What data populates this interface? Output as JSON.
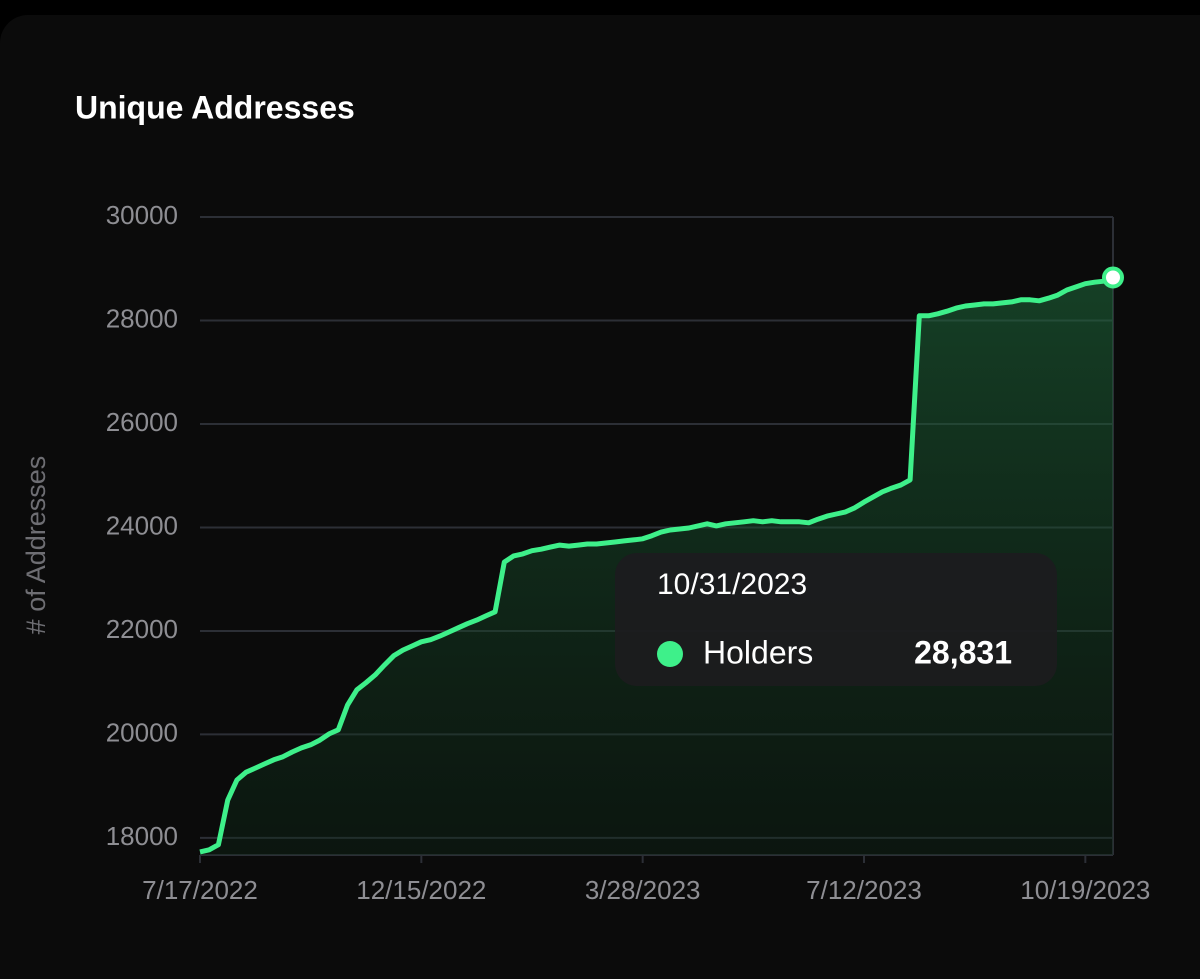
{
  "chart_data": {
    "type": "area",
    "title": "Unique Addresses",
    "y_label": "# of Addresses",
    "categories": [
      "7/17/2022",
      null,
      null,
      null,
      null,
      null,
      null,
      null,
      null,
      null,
      null,
      null,
      null,
      null,
      null,
      null,
      null,
      null,
      null,
      null,
      null,
      null,
      null,
      null,
      "12/15/2022",
      null,
      null,
      null,
      null,
      null,
      null,
      null,
      null,
      null,
      null,
      null,
      null,
      null,
      null,
      null,
      null,
      null,
      null,
      null,
      null,
      null,
      null,
      null,
      "3/28/2023",
      null,
      null,
      null,
      null,
      null,
      null,
      null,
      null,
      null,
      null,
      null,
      null,
      null,
      null,
      null,
      null,
      null,
      null,
      null,
      null,
      null,
      null,
      null,
      "7/12/2023",
      null,
      null,
      null,
      null,
      null,
      null,
      null,
      null,
      null,
      null,
      null,
      null,
      null,
      null,
      null,
      null,
      null,
      null,
      null,
      null,
      null,
      null,
      null,
      "10/19/2023",
      null,
      null,
      null
    ],
    "series": [
      {
        "name": "Holders",
        "color": "#3ef08a",
        "values": [
          17730,
          17770,
          17870,
          18730,
          19120,
          19270,
          19350,
          19430,
          19510,
          19570,
          19660,
          19740,
          19800,
          19890,
          20010,
          20090,
          20570,
          20860,
          21000,
          21150,
          21340,
          21520,
          21630,
          21710,
          21790,
          21830,
          21900,
          21980,
          22060,
          22140,
          22210,
          22290,
          22370,
          23330,
          23450,
          23490,
          23550,
          23580,
          23620,
          23660,
          23640,
          23660,
          23680,
          23680,
          23700,
          23720,
          23740,
          23760,
          23780,
          23840,
          23910,
          23950,
          23970,
          23990,
          24030,
          24070,
          24030,
          24070,
          24090,
          24110,
          24130,
          24110,
          24130,
          24110,
          24110,
          24110,
          24090,
          24160,
          24220,
          24260,
          24300,
          24380,
          24490,
          24590,
          24690,
          24760,
          24820,
          24920,
          28090,
          28090,
          28130,
          28180,
          28240,
          28280,
          28300,
          28320,
          28320,
          28340,
          28360,
          28400,
          28400,
          28380,
          28430,
          28490,
          28590,
          28650,
          28710,
          28740,
          28760,
          28831
        ]
      }
    ],
    "ylim": [
      17670,
      30000
    ],
    "yticks": [
      18000,
      20000,
      22000,
      24000,
      26000,
      28000,
      30000
    ],
    "grid": true,
    "tooltip": {
      "title": "10/31/2023",
      "value": 28831,
      "value_label": "28,831"
    }
  }
}
